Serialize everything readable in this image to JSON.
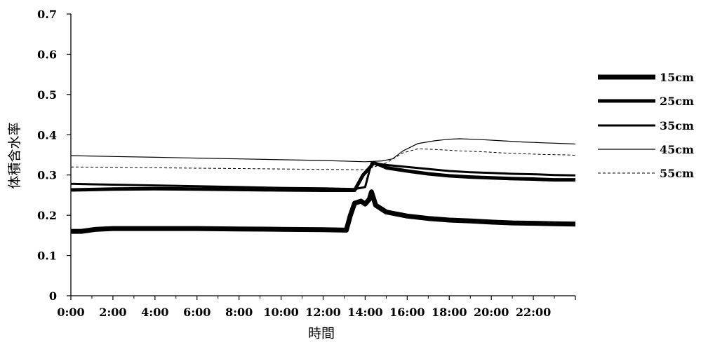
{
  "chart_data": {
    "type": "line",
    "xlabel": "時間",
    "ylabel": "体積含水率",
    "x_tick_labels": [
      "0:00",
      "2:00",
      "4:00",
      "6:00",
      "8:00",
      "10:00",
      "12:00",
      "14:00",
      "16:00",
      "18:00",
      "20:00",
      "22:00"
    ],
    "x_ticks_hours": [
      0,
      2,
      4,
      6,
      8,
      10,
      12,
      14,
      16,
      18,
      20,
      22
    ],
    "y_tick_labels": [
      "0",
      "0.1",
      "0.2",
      "0.3",
      "0.4",
      "0.5",
      "0.6",
      "0.7"
    ],
    "y_ticks": [
      0,
      0.1,
      0.2,
      0.3,
      0.4,
      0.5,
      0.6,
      0.7
    ],
    "xlim_hours": [
      0,
      24
    ],
    "ylim": [
      0,
      0.7
    ],
    "grid": false,
    "legend_position": "right",
    "series": [
      {
        "name": "15cm",
        "style": "solid",
        "points": [
          [
            0,
            0.16
          ],
          [
            0.5,
            0.16
          ],
          [
            1.2,
            0.165
          ],
          [
            2,
            0.167
          ],
          [
            4,
            0.167
          ],
          [
            6,
            0.167
          ],
          [
            8,
            0.166
          ],
          [
            10,
            0.165
          ],
          [
            12,
            0.164
          ],
          [
            13.1,
            0.163
          ],
          [
            13.3,
            0.2
          ],
          [
            13.5,
            0.23
          ],
          [
            13.8,
            0.235
          ],
          [
            14.0,
            0.228
          ],
          [
            14.2,
            0.24
          ],
          [
            14.3,
            0.258
          ],
          [
            14.5,
            0.225
          ],
          [
            15,
            0.208
          ],
          [
            16,
            0.198
          ],
          [
            17,
            0.192
          ],
          [
            18,
            0.188
          ],
          [
            19,
            0.186
          ],
          [
            20,
            0.183
          ],
          [
            21,
            0.181
          ],
          [
            22,
            0.18
          ],
          [
            23,
            0.179
          ],
          [
            24,
            0.178
          ]
        ]
      },
      {
        "name": "25cm",
        "style": "solid",
        "points": [
          [
            0,
            0.263
          ],
          [
            2,
            0.265
          ],
          [
            4,
            0.266
          ],
          [
            6,
            0.265
          ],
          [
            8,
            0.264
          ],
          [
            10,
            0.263
          ],
          [
            12,
            0.262
          ],
          [
            13.5,
            0.262
          ],
          [
            13.9,
            0.3
          ],
          [
            14.2,
            0.317
          ],
          [
            14.4,
            0.33
          ],
          [
            14.7,
            0.325
          ],
          [
            15,
            0.318
          ],
          [
            16,
            0.31
          ],
          [
            17,
            0.303
          ],
          [
            18,
            0.298
          ],
          [
            19,
            0.295
          ],
          [
            20,
            0.293
          ],
          [
            21,
            0.291
          ],
          [
            22,
            0.29
          ],
          [
            23,
            0.288
          ],
          [
            24,
            0.288
          ]
        ]
      },
      {
        "name": "35cm",
        "style": "solid",
        "points": [
          [
            0,
            0.278
          ],
          [
            2,
            0.276
          ],
          [
            4,
            0.274
          ],
          [
            6,
            0.272
          ],
          [
            8,
            0.27
          ],
          [
            10,
            0.268
          ],
          [
            12,
            0.267
          ],
          [
            13.5,
            0.265
          ],
          [
            14.0,
            0.27
          ],
          [
            14.3,
            0.33
          ],
          [
            14.6,
            0.328
          ],
          [
            15,
            0.325
          ],
          [
            16,
            0.32
          ],
          [
            17,
            0.315
          ],
          [
            18,
            0.31
          ],
          [
            19,
            0.307
          ],
          [
            20,
            0.305
          ],
          [
            21,
            0.303
          ],
          [
            22,
            0.302
          ],
          [
            23,
            0.3
          ],
          [
            24,
            0.299
          ]
        ]
      },
      {
        "name": "45cm",
        "style": "solid",
        "points": [
          [
            0,
            0.348
          ],
          [
            2,
            0.346
          ],
          [
            4,
            0.344
          ],
          [
            6,
            0.342
          ],
          [
            8,
            0.34
          ],
          [
            10,
            0.338
          ],
          [
            12,
            0.336
          ],
          [
            14,
            0.333
          ],
          [
            14.8,
            0.335
          ],
          [
            15.3,
            0.34
          ],
          [
            15.8,
            0.36
          ],
          [
            16.5,
            0.378
          ],
          [
            17.3,
            0.385
          ],
          [
            18,
            0.389
          ],
          [
            18.5,
            0.39
          ],
          [
            19.5,
            0.388
          ],
          [
            20.5,
            0.385
          ],
          [
            21.5,
            0.382
          ],
          [
            22.5,
            0.38
          ],
          [
            23.5,
            0.378
          ],
          [
            24,
            0.377
          ]
        ]
      },
      {
        "name": "55cm",
        "style": "dashed",
        "points": [
          [
            0,
            0.32
          ],
          [
            2,
            0.319
          ],
          [
            4,
            0.318
          ],
          [
            6,
            0.317
          ],
          [
            8,
            0.316
          ],
          [
            10,
            0.315
          ],
          [
            12,
            0.314
          ],
          [
            14,
            0.313
          ],
          [
            15,
            0.33
          ],
          [
            15.8,
            0.355
          ],
          [
            16.5,
            0.365
          ],
          [
            17.5,
            0.363
          ],
          [
            18.5,
            0.36
          ],
          [
            19.5,
            0.358
          ],
          [
            20.5,
            0.355
          ],
          [
            21.5,
            0.353
          ],
          [
            22.5,
            0.351
          ],
          [
            23.5,
            0.35
          ],
          [
            24,
            0.349
          ]
        ]
      }
    ]
  }
}
